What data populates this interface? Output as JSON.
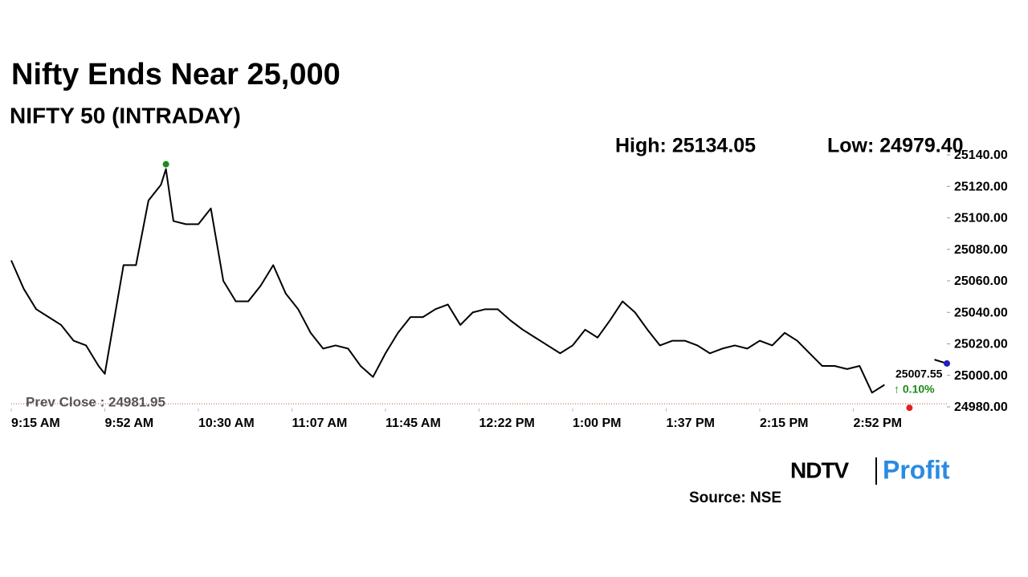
{
  "chart_data": {
    "type": "line",
    "title": "Nifty Ends Near 25,000",
    "subtitle": "NIFTY 50 (INTRADAY)",
    "high_label": "High: 25134.05",
    "low_label": "Low: 24979.40",
    "prev_close": 24981.95,
    "prev_close_label": "Prev Close : 24981.95",
    "last_label": "25007.55",
    "change_label": "↑ 0.10%",
    "source": "Source: NSE",
    "logo": [
      "NDTV",
      "Profit"
    ],
    "xlim": [
      0,
      375
    ],
    "xticks": [
      {
        "value": 0,
        "label": "9:15 AM"
      },
      {
        "value": 37.5,
        "label": "9:52 AM"
      },
      {
        "value": 75,
        "label": "10:30 AM"
      },
      {
        "value": 112.5,
        "label": "11:07 AM"
      },
      {
        "value": 150,
        "label": "11:45 AM"
      },
      {
        "value": 187.5,
        "label": "12:22 PM"
      },
      {
        "value": 225,
        "label": "1:00 PM"
      },
      {
        "value": 262.5,
        "label": "1:37 PM"
      },
      {
        "value": 300,
        "label": "2:15 PM"
      },
      {
        "value": 337.5,
        "label": "2:52 PM"
      }
    ],
    "ylim": [
      24980,
      25140
    ],
    "yticks": [
      {
        "value": 24980,
        "label": "24980.00"
      },
      {
        "value": 25000,
        "label": "25000.00"
      },
      {
        "value": 25020,
        "label": "25020.00"
      },
      {
        "value": 25040,
        "label": "25040.00"
      },
      {
        "value": 25060,
        "label": "25060.00"
      },
      {
        "value": 25080,
        "label": "25080.00"
      },
      {
        "value": 25100,
        "label": "25100.00"
      },
      {
        "value": 25120,
        "label": "25120.00"
      },
      {
        "value": 25140,
        "label": "25140.00"
      }
    ],
    "x": [
      0,
      5,
      10,
      15,
      20,
      25,
      30,
      35,
      37.5,
      40,
      45,
      50,
      55,
      60,
      62,
      65,
      70,
      75,
      80,
      85,
      90,
      95,
      100,
      105,
      110,
      115,
      120,
      125,
      130,
      135,
      140,
      145,
      150,
      155,
      160,
      165,
      170,
      175,
      180,
      185,
      190,
      195,
      200,
      205,
      210,
      215,
      220,
      225,
      230,
      235,
      240,
      245,
      250,
      255,
      260,
      265,
      270,
      275,
      280,
      285,
      290,
      295,
      300,
      305,
      310,
      315,
      320,
      325,
      330,
      335,
      340,
      345,
      350,
      360,
      370,
      375
    ],
    "series": [
      {
        "color": "#000000",
        "values": [
          25073,
          25055,
          25042,
          25037,
          25032,
          25022,
          25019,
          25006,
          25001,
          25024,
          25070,
          25070,
          25111,
          25121,
          25131,
          25098,
          25096,
          25096,
          25106,
          25060,
          25047,
          25047,
          25057,
          25070,
          25052,
          25042,
          25027,
          25017,
          25019,
          25017,
          25006,
          24999,
          25014,
          25027,
          25037,
          25037,
          25042,
          25045,
          25032,
          25040,
          25042,
          25042,
          25035,
          25029,
          25024,
          25019,
          25014,
          25019,
          25029,
          25024,
          25035,
          25047,
          25040,
          25029,
          25019,
          25022,
          25022,
          25019,
          25014,
          25017,
          25019,
          25017,
          25022,
          25019,
          25027,
          25022,
          25014,
          25006,
          25006,
          25004,
          25006,
          24989,
          24994,
          null,
          25010,
          25007.55
        ]
      }
    ],
    "markers": [
      {
        "x": 62,
        "y": 25134.05,
        "color": "#1a8a1a"
      },
      {
        "x": 360,
        "y": 24979.4,
        "color": "#e02020"
      },
      {
        "x": 375,
        "y": 25007.55,
        "color": "#2020c0"
      }
    ]
  }
}
